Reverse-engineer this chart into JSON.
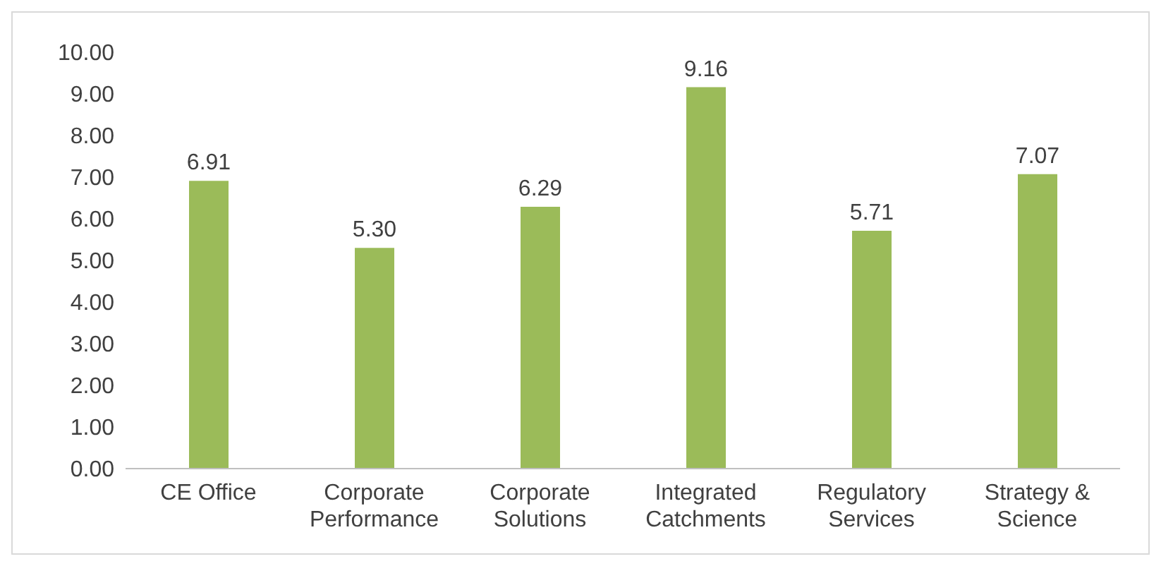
{
  "chart_data": {
    "type": "bar",
    "categories": [
      "CE Office",
      "Corporate Performance",
      "Corporate Solutions",
      "Integrated Catchments",
      "Regulatory Services",
      "Strategy & Science"
    ],
    "values": [
      6.91,
      5.3,
      6.29,
      9.16,
      5.71,
      7.07
    ],
    "value_labels": [
      "6.91",
      "5.30",
      "6.29",
      "9.16",
      "5.71",
      "7.07"
    ],
    "color": "#9bbb59",
    "ylim": [
      0,
      10
    ],
    "yticks": [
      {
        "value": 0,
        "label": "0.00"
      },
      {
        "value": 1,
        "label": "1.00"
      },
      {
        "value": 2,
        "label": "2.00"
      },
      {
        "value": 3,
        "label": "3.00"
      },
      {
        "value": 4,
        "label": "4.00"
      },
      {
        "value": 5,
        "label": "5.00"
      },
      {
        "value": 6,
        "label": "6.00"
      },
      {
        "value": 7,
        "label": "7.00"
      },
      {
        "value": 8,
        "label": "8.00"
      },
      {
        "value": 9,
        "label": "9.00"
      },
      {
        "value": 10,
        "label": "10.00"
      }
    ],
    "grid": false,
    "legend": false
  }
}
